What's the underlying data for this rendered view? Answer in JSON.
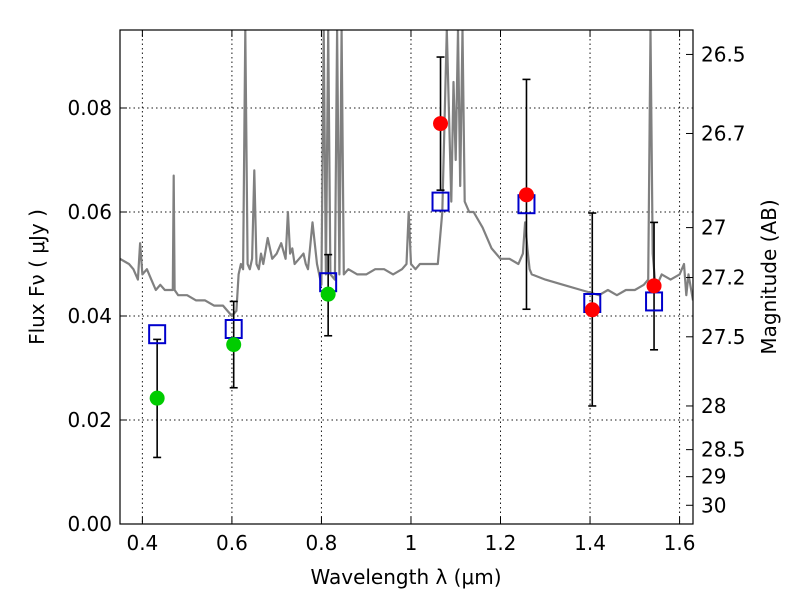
{
  "chart_data": {
    "type": "scatter",
    "xlabel": "Wavelength  λ (μm)",
    "ylabel": "Flux  Fν  ( μJy )",
    "ylabel_right": "Magnitude (AB)",
    "xlim": [
      0.35,
      1.63
    ],
    "ylim": [
      0.0,
      0.095
    ],
    "grid": true,
    "x_ticks": [
      0.4,
      0.6,
      0.8,
      1.0,
      1.2,
      1.4,
      1.6
    ],
    "x_tick_labels": [
      "0.4",
      "0.6",
      "0.8",
      "1",
      "1.2",
      "1.4",
      "1.6"
    ],
    "y_ticks": [
      0.0,
      0.02,
      0.04,
      0.06,
      0.08
    ],
    "y_tick_labels": [
      "0.00",
      "0.02",
      "0.04",
      "0.06",
      "0.08"
    ],
    "right_ticks": [
      {
        "label": "26.5",
        "flux": 0.0903
      },
      {
        "label": "26.7",
        "flux": 0.0751
      },
      {
        "label": "27",
        "flux": 0.057
      },
      {
        "label": "27.2",
        "flux": 0.0474
      },
      {
        "label": "27.5",
        "flux": 0.036
      },
      {
        "label": "28",
        "flux": 0.0227
      },
      {
        "label": "28.5",
        "flux": 0.0143
      },
      {
        "label": "29",
        "flux": 0.0091
      },
      {
        "label": "30",
        "flux": 0.0036
      }
    ],
    "series": [
      {
        "kind": "line",
        "color": "#808080",
        "x": [
          0.35,
          0.37,
          0.38,
          0.39,
          0.395,
          0.4,
          0.41,
          0.42,
          0.43,
          0.44,
          0.45,
          0.46,
          0.468,
          0.47,
          0.472,
          0.48,
          0.5,
          0.52,
          0.54,
          0.56,
          0.58,
          0.6,
          0.61,
          0.615,
          0.62,
          0.625,
          0.63,
          0.635,
          0.64,
          0.645,
          0.65,
          0.655,
          0.66,
          0.665,
          0.67,
          0.68,
          0.69,
          0.7,
          0.71,
          0.72,
          0.725,
          0.73,
          0.735,
          0.74,
          0.75,
          0.76,
          0.765,
          0.77,
          0.78,
          0.79,
          0.8,
          0.805,
          0.81,
          0.815,
          0.82,
          0.83,
          0.835,
          0.84,
          0.845,
          0.85,
          0.86,
          0.88,
          0.9,
          0.92,
          0.94,
          0.96,
          0.98,
          0.99,
          0.995,
          1.0,
          1.01,
          1.02,
          1.04,
          1.06,
          1.07,
          1.08,
          1.09,
          1.095,
          1.1,
          1.105,
          1.11,
          1.115,
          1.12,
          1.13,
          1.14,
          1.16,
          1.18,
          1.2,
          1.22,
          1.24,
          1.25,
          1.255,
          1.26,
          1.265,
          1.27,
          1.3,
          1.34,
          1.38,
          1.42,
          1.44,
          1.46,
          1.48,
          1.5,
          1.52,
          1.53,
          1.535,
          1.54,
          1.545,
          1.55,
          1.56,
          1.58,
          1.6,
          1.61,
          1.615,
          1.62,
          1.63
        ],
        "y": [
          0.051,
          0.05,
          0.049,
          0.047,
          0.054,
          0.048,
          0.049,
          0.047,
          0.045,
          0.046,
          0.045,
          0.045,
          0.045,
          0.067,
          0.045,
          0.044,
          0.044,
          0.043,
          0.043,
          0.042,
          0.042,
          0.04,
          0.041,
          0.048,
          0.05,
          0.049,
          0.095,
          0.05,
          0.049,
          0.051,
          0.068,
          0.05,
          0.049,
          0.052,
          0.05,
          0.055,
          0.051,
          0.052,
          0.054,
          0.051,
          0.06,
          0.052,
          0.053,
          0.05,
          0.051,
          0.052,
          0.05,
          0.049,
          0.058,
          0.05,
          0.046,
          0.095,
          0.048,
          0.095,
          0.048,
          0.047,
          0.095,
          0.048,
          0.095,
          0.048,
          0.049,
          0.048,
          0.048,
          0.049,
          0.049,
          0.048,
          0.049,
          0.05,
          0.06,
          0.05,
          0.049,
          0.05,
          0.05,
          0.05,
          0.06,
          0.095,
          0.062,
          0.085,
          0.07,
          0.095,
          0.065,
          0.095,
          0.062,
          0.06,
          0.06,
          0.057,
          0.053,
          0.051,
          0.051,
          0.05,
          0.052,
          0.058,
          0.053,
          0.049,
          0.048,
          0.047,
          0.046,
          0.045,
          0.044,
          0.045,
          0.044,
          0.045,
          0.045,
          0.046,
          0.047,
          0.095,
          0.052,
          0.047,
          0.046,
          0.048,
          0.047,
          0.048,
          0.05,
          0.044,
          0.048,
          0.043
        ]
      },
      {
        "kind": "open-square",
        "color": "#0000cc",
        "x": [
          0.433,
          0.604,
          0.815,
          1.066,
          1.258,
          1.405,
          1.543
        ],
        "y": [
          0.0365,
          0.0375,
          0.0465,
          0.062,
          0.0615,
          0.0425,
          0.0428
        ]
      },
      {
        "kind": "filled-circle",
        "color": "#00cc00",
        "x": [
          0.433,
          0.604,
          0.815
        ],
        "y": [
          0.0242,
          0.0345,
          0.0442
        ],
        "err_low": [
          0.0128,
          0.0262,
          0.0362
        ],
        "err_high": [
          0.0355,
          0.0428,
          0.0518
        ]
      },
      {
        "kind": "filled-circle",
        "color": "#ff0000",
        "x": [
          1.066,
          1.258,
          1.405,
          1.543
        ],
        "y": [
          0.077,
          0.0633,
          0.0412,
          0.0458
        ],
        "err_low": [
          0.0642,
          0.0413,
          0.0227,
          0.0335
        ],
        "err_high": [
          0.0898,
          0.0855,
          0.0598,
          0.058
        ]
      }
    ]
  }
}
